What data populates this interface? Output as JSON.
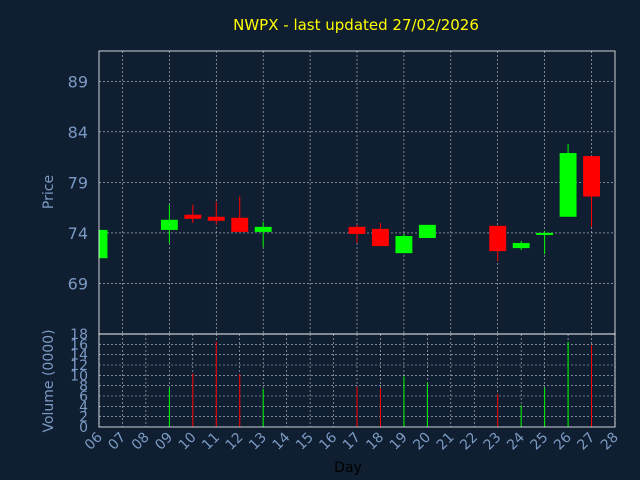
{
  "chart_data": {
    "type": "candlestick",
    "title": "NWPX - last updated 27/02/2026",
    "xlabel": "Day",
    "x_ticks": [
      "06",
      "07",
      "08",
      "09",
      "10",
      "11",
      "12",
      "13",
      "14",
      "15",
      "16",
      "17",
      "18",
      "19",
      "20",
      "21",
      "22",
      "23",
      "24",
      "25",
      "26",
      "27",
      "28"
    ],
    "colors": {
      "up": "#00ff00",
      "down": "#ff0000",
      "background": "#0f1e30",
      "title": "#ffff00",
      "axis_text": "#7b9ac3"
    },
    "price_panel": {
      "ylabel": "Price",
      "ylim": [
        64,
        92
      ],
      "y_ticks": [
        69,
        74,
        79,
        84,
        89
      ],
      "candles": [
        {
          "day": 6,
          "open": 71.5,
          "high": 74.3,
          "low": 71.5,
          "close": 74.3
        },
        {
          "day": 9,
          "open": 74.3,
          "high": 76.8,
          "low": 73.0,
          "close": 75.3
        },
        {
          "day": 10,
          "open": 75.8,
          "high": 76.8,
          "low": 75.0,
          "close": 75.4
        },
        {
          "day": 11,
          "open": 75.6,
          "high": 77.1,
          "low": 74.8,
          "close": 75.2
        },
        {
          "day": 12,
          "open": 75.5,
          "high": 77.6,
          "low": 74.1,
          "close": 74.1
        },
        {
          "day": 13,
          "open": 74.1,
          "high": 75.1,
          "low": 72.6,
          "close": 74.6
        },
        {
          "day": 17,
          "open": 74.6,
          "high": 74.8,
          "low": 73.0,
          "close": 73.9
        },
        {
          "day": 18,
          "open": 74.4,
          "high": 75.0,
          "low": 72.7,
          "close": 72.7
        },
        {
          "day": 19,
          "open": 72.0,
          "high": 73.9,
          "low": 72.0,
          "close": 73.7
        },
        {
          "day": 20,
          "open": 73.5,
          "high": 74.8,
          "low": 73.5,
          "close": 74.8
        },
        {
          "day": 23,
          "open": 74.7,
          "high": 74.7,
          "low": 71.2,
          "close": 72.2
        },
        {
          "day": 24,
          "open": 72.5,
          "high": 73.2,
          "low": 72.3,
          "close": 73.0
        },
        {
          "day": 25,
          "open": 73.8,
          "high": 74.2,
          "low": 71.9,
          "close": 74.0
        },
        {
          "day": 26,
          "open": 75.6,
          "high": 82.8,
          "low": 75.6,
          "close": 81.9
        },
        {
          "day": 27,
          "open": 81.6,
          "high": 81.6,
          "low": 74.6,
          "close": 77.6
        }
      ]
    },
    "volume_panel": {
      "ylabel": "Volume (0000)",
      "ylim": [
        0,
        18
      ],
      "y_ticks": [
        0,
        2,
        4,
        6,
        8,
        10,
        12,
        14,
        16,
        18
      ],
      "bars": [
        {
          "day": 9,
          "value": 7.6,
          "direction": "up"
        },
        {
          "day": 10,
          "value": 10.4,
          "direction": "down"
        },
        {
          "day": 11,
          "value": 16.5,
          "direction": "down"
        },
        {
          "day": 12,
          "value": 10.2,
          "direction": "down"
        },
        {
          "day": 13,
          "value": 7.4,
          "direction": "up"
        },
        {
          "day": 17,
          "value": 7.8,
          "direction": "down"
        },
        {
          "day": 18,
          "value": 7.6,
          "direction": "down"
        },
        {
          "day": 19,
          "value": 9.8,
          "direction": "up"
        },
        {
          "day": 20,
          "value": 8.6,
          "direction": "up"
        },
        {
          "day": 23,
          "value": 6.4,
          "direction": "down"
        },
        {
          "day": 24,
          "value": 4.2,
          "direction": "up"
        },
        {
          "day": 25,
          "value": 7.6,
          "direction": "up"
        },
        {
          "day": 26,
          "value": 16.5,
          "direction": "up"
        },
        {
          "day": 27,
          "value": 15.8,
          "direction": "down"
        }
      ]
    }
  }
}
